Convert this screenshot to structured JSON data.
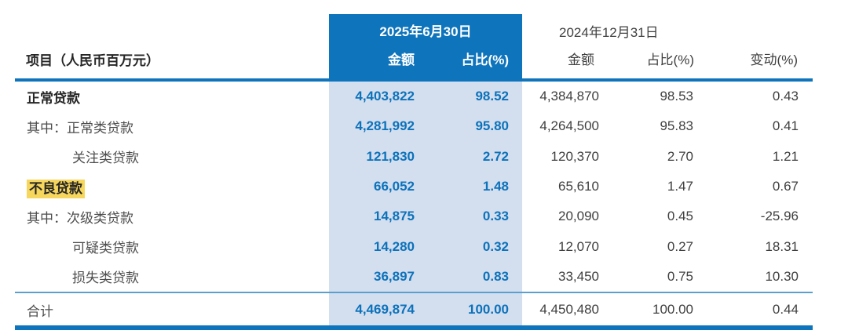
{
  "table": {
    "item_header": "项目（人民币百万元）",
    "period_2025": {
      "date": "2025年6月30日",
      "amount_label": "金额",
      "pct_label": "占比(%)"
    },
    "period_2024": {
      "date": "2024年12月31日",
      "amount_label": "金额",
      "pct_label": "占比(%)",
      "change_label": "变动(%)"
    },
    "rows": [
      {
        "label": "正常贷款",
        "a25": "4,403,822",
        "p25": "98.52",
        "a24": "4,384,870",
        "p24": "98.53",
        "chg": "0.43"
      },
      {
        "label": "其中：正常类贷款",
        "a25": "4,281,992",
        "p25": "95.80",
        "a24": "4,264,500",
        "p24": "95.83",
        "chg": "0.41"
      },
      {
        "label": "关注类贷款",
        "a25": "121,830",
        "p25": "2.72",
        "a24": "120,370",
        "p24": "2.70",
        "chg": "1.21"
      },
      {
        "label": "不良贷款",
        "a25": "66,052",
        "p25": "1.48",
        "a24": "65,610",
        "p24": "1.47",
        "chg": "0.67"
      },
      {
        "label": "其中：次级类贷款",
        "a25": "14,875",
        "p25": "0.33",
        "a24": "20,090",
        "p24": "0.45",
        "chg": "-25.96"
      },
      {
        "label": "可疑类贷款",
        "a25": "14,280",
        "p25": "0.32",
        "a24": "12,070",
        "p24": "0.27",
        "chg": "18.31"
      },
      {
        "label": "损失类贷款",
        "a25": "36,897",
        "p25": "0.83",
        "a24": "33,450",
        "p24": "0.75",
        "chg": "10.30"
      }
    ],
    "total": {
      "label": "合计",
      "a25": "4,469,874",
      "p25": "100.00",
      "a24": "4,450,480",
      "p24": "100.00",
      "chg": "0.44"
    }
  },
  "colors": {
    "accent_blue": "#0E74BC",
    "column_highlight_blue": "#D3DEEF",
    "number_blue": "#0C72BA",
    "thin_rule_blue": "#5A9FD0",
    "label_highlight_yellow": "#F6D65C",
    "body_text_gray": "#3F3F3F"
  }
}
